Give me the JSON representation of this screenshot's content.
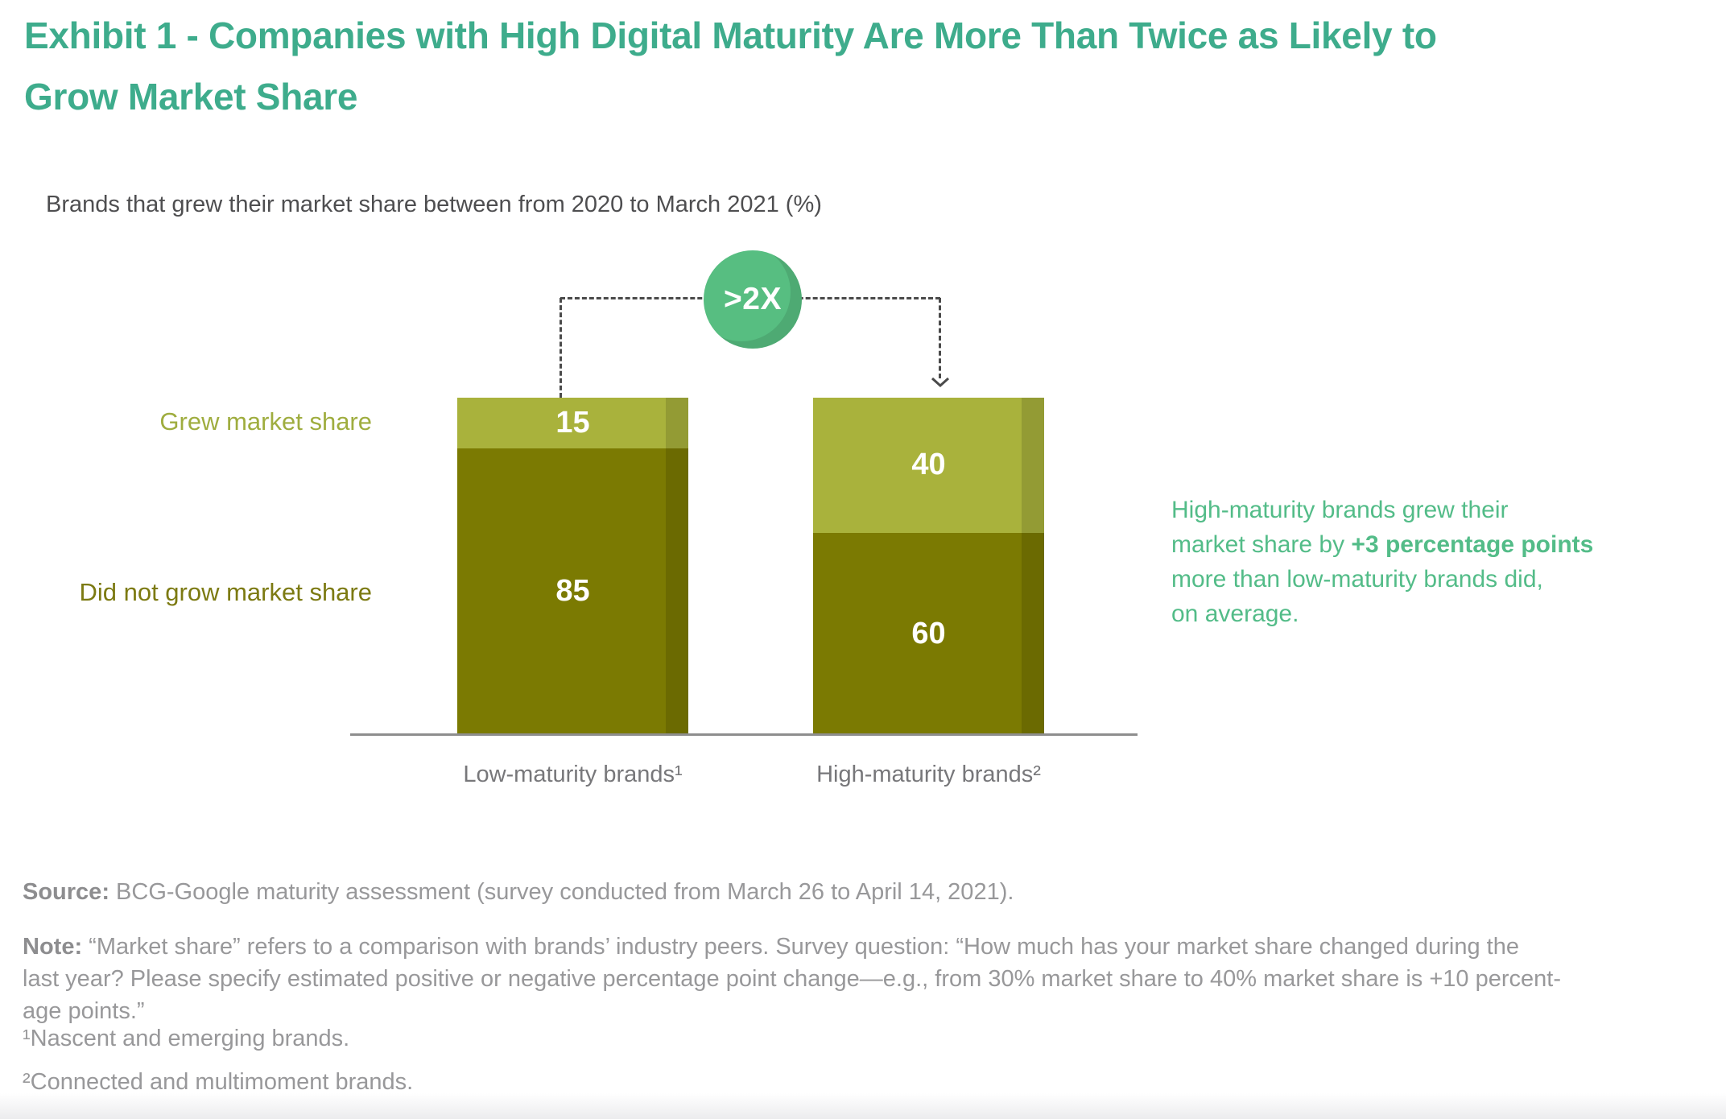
{
  "header": {
    "title": "Exhibit 1 - Companies with High Digital Maturity Are More Than Twice as Likely to Grow Market Share",
    "subtitle": "Brands that grew their market share between from 2020 to March 2021 (%)"
  },
  "badge": {
    "label": ">2X"
  },
  "row_labels": {
    "grew": "Grew market share",
    "did_not_grow": "Did not grow market share"
  },
  "bars": {
    "low": {
      "label": "Low-maturity brands¹",
      "grew": "15",
      "did_not_grow": "85"
    },
    "high": {
      "label": "High-maturity brands²",
      "grew": "40",
      "did_not_grow": "60"
    }
  },
  "annotation": {
    "line1": "High-maturity brands grew their",
    "line2_pre": "market share by ",
    "line2_bold": "+3 percentage points",
    "line3": "more than low-maturity brands did,",
    "line4": "on average."
  },
  "footer": {
    "source_label": "Source:",
    "source_text": " BCG-Google maturity assessment (survey conducted from March 26 to April 14, 2021).",
    "note_label": "Note:",
    "note_line1": " “Market share” refers to a comparison with brands’ industry peers. Survey question: “How much has your market share changed during the",
    "note_line2": "last year? Please specify estimated positive or negative percentage point change—e.g., from 30% market share to 40% market share is +10 percent-",
    "note_line3": "age points.”",
    "footnote1": "¹Nascent and emerging brands.",
    "footnote2": "²Connected and multimoment brands."
  },
  "colors": {
    "title_green": "#3EAC8C",
    "annotation_green": "#53BC88",
    "badge_green": "#57BE81",
    "segment_grew": "#A9B23C",
    "segment_did_not_grow": "#7B7A02",
    "segment_side_shade": "rgba(0,0,0,0.13)",
    "dashed_connector": "#4A4A4A",
    "axis_gray": "#8E8E8E",
    "footer_gray": "#98989A"
  },
  "chart_data": {
    "type": "bar",
    "subtype": "stacked-100-percent-column",
    "title": "Exhibit 1 - Companies with High Digital Maturity Are More Than Twice as Likely to Grow Market Share",
    "subtitle": "Brands that grew their market share between from 2020 to March 2021 (%)",
    "categories": [
      "Low-maturity brands¹",
      "High-maturity brands²"
    ],
    "series": [
      {
        "name": "Grew market share",
        "values": [
          15,
          40
        ],
        "color": "#A9B23C"
      },
      {
        "name": "Did not grow market share",
        "values": [
          85,
          60
        ],
        "color": "#7B7A02"
      }
    ],
    "ylim": [
      0,
      100
    ],
    "grid": false,
    "legend_position": "left-of-bars-as-row-labels",
    "annotations": [
      ">2X (badge on dashed connector between the tops of the two 'Grew market share' segments)",
      "High-maturity brands grew their market share by +3 percentage points more than low-maturity brands did, on average."
    ]
  }
}
